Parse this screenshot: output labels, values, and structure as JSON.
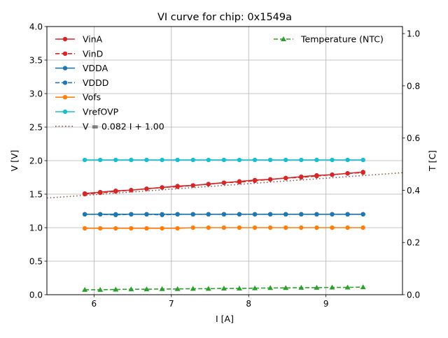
{
  "chart_data": {
    "type": "line",
    "title": "VI curve for chip: 0x1549a",
    "xlabel": "I [A]",
    "ylabel": "V [V]",
    "y2label": "T [C]",
    "xlim": [
      5.39,
      9.99
    ],
    "ylim": [
      0.0,
      4.0
    ],
    "y2lim": [
      0.0,
      1.027
    ],
    "xticks": [
      6,
      7,
      8,
      9
    ],
    "xtick_labels": [
      "6",
      "7",
      "8",
      "9"
    ],
    "yticks": [
      0.0,
      0.5,
      1.0,
      1.5,
      2.0,
      2.5,
      3.0,
      3.5,
      4.0
    ],
    "ytick_labels": [
      "0.0",
      "0.5",
      "1.0",
      "1.5",
      "2.0",
      "2.5",
      "3.0",
      "3.5",
      "4.0"
    ],
    "y2ticks": [
      0.0,
      0.2,
      0.4,
      0.6,
      0.8,
      1.0
    ],
    "y2tick_labels": [
      "0.0",
      "0.2",
      "0.4",
      "0.6",
      "0.8",
      "1.0"
    ],
    "grid": true,
    "legend_left_placement": "top-left",
    "legend_right_placement": "top-right",
    "x": [
      5.88,
      6.08,
      6.28,
      6.48,
      6.68,
      6.88,
      7.08,
      7.28,
      7.48,
      7.68,
      7.88,
      8.08,
      8.28,
      8.48,
      8.68,
      8.88,
      9.08,
      9.28,
      9.48
    ],
    "series": [
      {
        "name": "VinA",
        "axis": "left",
        "color": "#d62728",
        "style": "solid",
        "marker": "circle",
        "values": [
          1.51,
          1.53,
          1.55,
          1.56,
          1.58,
          1.6,
          1.62,
          1.63,
          1.65,
          1.67,
          1.69,
          1.71,
          1.72,
          1.74,
          1.76,
          1.78,
          1.79,
          1.81,
          1.83
        ]
      },
      {
        "name": "VinD",
        "axis": "left",
        "color": "#d62728",
        "style": "dashed",
        "marker": "circle",
        "values": [
          1.5,
          1.52,
          1.54,
          1.56,
          1.58,
          1.6,
          1.61,
          1.63,
          1.65,
          1.67,
          1.68,
          1.7,
          1.72,
          1.74,
          1.75,
          1.77,
          1.79,
          1.81,
          1.82
        ]
      },
      {
        "name": "VDDA",
        "axis": "left",
        "color": "#1f77b4",
        "style": "solid",
        "marker": "circle",
        "values": [
          1.2,
          1.2,
          1.2,
          1.2,
          1.2,
          1.2,
          1.2,
          1.2,
          1.2,
          1.2,
          1.2,
          1.2,
          1.2,
          1.2,
          1.2,
          1.2,
          1.2,
          1.2,
          1.2
        ]
      },
      {
        "name": "VDDD",
        "axis": "left",
        "color": "#1f77b4",
        "style": "dashed",
        "marker": "circle",
        "values": [
          1.2,
          1.2,
          1.19,
          1.2,
          1.2,
          1.19,
          1.2,
          1.2,
          1.2,
          1.2,
          1.2,
          1.2,
          1.2,
          1.2,
          1.2,
          1.2,
          1.2,
          1.2,
          1.2
        ]
      },
      {
        "name": "Vofs",
        "axis": "left",
        "color": "#ff7f0e",
        "style": "solid",
        "marker": "circle",
        "values": [
          0.99,
          0.99,
          0.99,
          0.99,
          0.99,
          0.99,
          0.99,
          1.0,
          1.0,
          1.0,
          1.0,
          1.0,
          1.0,
          1.0,
          1.0,
          1.0,
          1.0,
          1.0,
          1.0
        ]
      },
      {
        "name": "VrefOVP",
        "axis": "left",
        "color": "#17becf",
        "style": "solid",
        "marker": "circle",
        "values": [
          2.01,
          2.01,
          2.01,
          2.01,
          2.01,
          2.01,
          2.01,
          2.01,
          2.01,
          2.01,
          2.01,
          2.01,
          2.01,
          2.01,
          2.01,
          2.01,
          2.01,
          2.01,
          2.01
        ]
      },
      {
        "name": "Temperature (NTC)",
        "axis": "right",
        "color": "#2ca02c",
        "style": "dashed",
        "marker": "triangle",
        "values": [
          0.019,
          0.019,
          0.02,
          0.021,
          0.021,
          0.022,
          0.022,
          0.023,
          0.023,
          0.024,
          0.024,
          0.025,
          0.026,
          0.026,
          0.027,
          0.027,
          0.028,
          0.028,
          0.029
        ]
      }
    ],
    "fit": {
      "name": "V = 0.082 I + 1.00",
      "slope": 0.082,
      "intercept": 1.0,
      "color": "#8c564b",
      "style": "dotted",
      "axis": "left"
    }
  }
}
